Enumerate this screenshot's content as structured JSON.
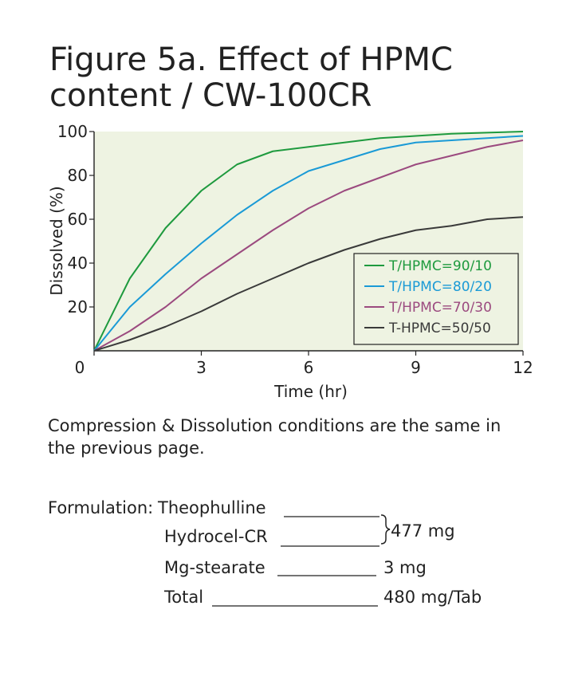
{
  "chart_data": {
    "type": "line",
    "title": [
      "Figure 5a. Effect of HPMC",
      "content / CW-100CR"
    ],
    "x_label": "Time (hr)",
    "y_label": "Dissolved (%)",
    "x": [
      0,
      1,
      2,
      3,
      4,
      5,
      6,
      7,
      8,
      9,
      10,
      11,
      12
    ],
    "xlim": [
      0,
      12
    ],
    "xticks": [
      0,
      3,
      6,
      9,
      12
    ],
    "ylim": [
      0,
      100
    ],
    "yticks": [
      20,
      40,
      60,
      80,
      100
    ],
    "background": "#eef3e2",
    "legend": "lower-right",
    "series": [
      {
        "name": "T/HPMC=90/10",
        "color": "#1e9a3e",
        "values": [
          0,
          33,
          56,
          73,
          85,
          91,
          93,
          95,
          97,
          98,
          99,
          99.5,
          100
        ]
      },
      {
        "name": "T/HPMC=80/20",
        "color": "#1a9ad6",
        "values": [
          0,
          20,
          35,
          49,
          62,
          73,
          82,
          87,
          92,
          95,
          96,
          97,
          98
        ]
      },
      {
        "name": "T/HPMC=70/30",
        "color": "#9b4a7f",
        "values": [
          0,
          9,
          20,
          33,
          44,
          55,
          65,
          73,
          79,
          85,
          89,
          93,
          96
        ]
      },
      {
        "name": "T-HPMC=50/50",
        "color": "#3a3a3a",
        "values": [
          0,
          5,
          11,
          18,
          26,
          33,
          40,
          46,
          51,
          55,
          57,
          60,
          61
        ]
      }
    ]
  },
  "note": [
    "Compression & Dissolution conditions are the same in",
    "the previous page."
  ],
  "formulation": {
    "label": "Formulation:",
    "group_amount": "477 mg",
    "items": [
      {
        "name": "Theophulline"
      },
      {
        "name": "Hydrocel-CR"
      },
      {
        "name": "Mg-stearate",
        "amount": "3 mg"
      },
      {
        "name": "Total",
        "amount": "480 mg/Tab"
      }
    ]
  }
}
